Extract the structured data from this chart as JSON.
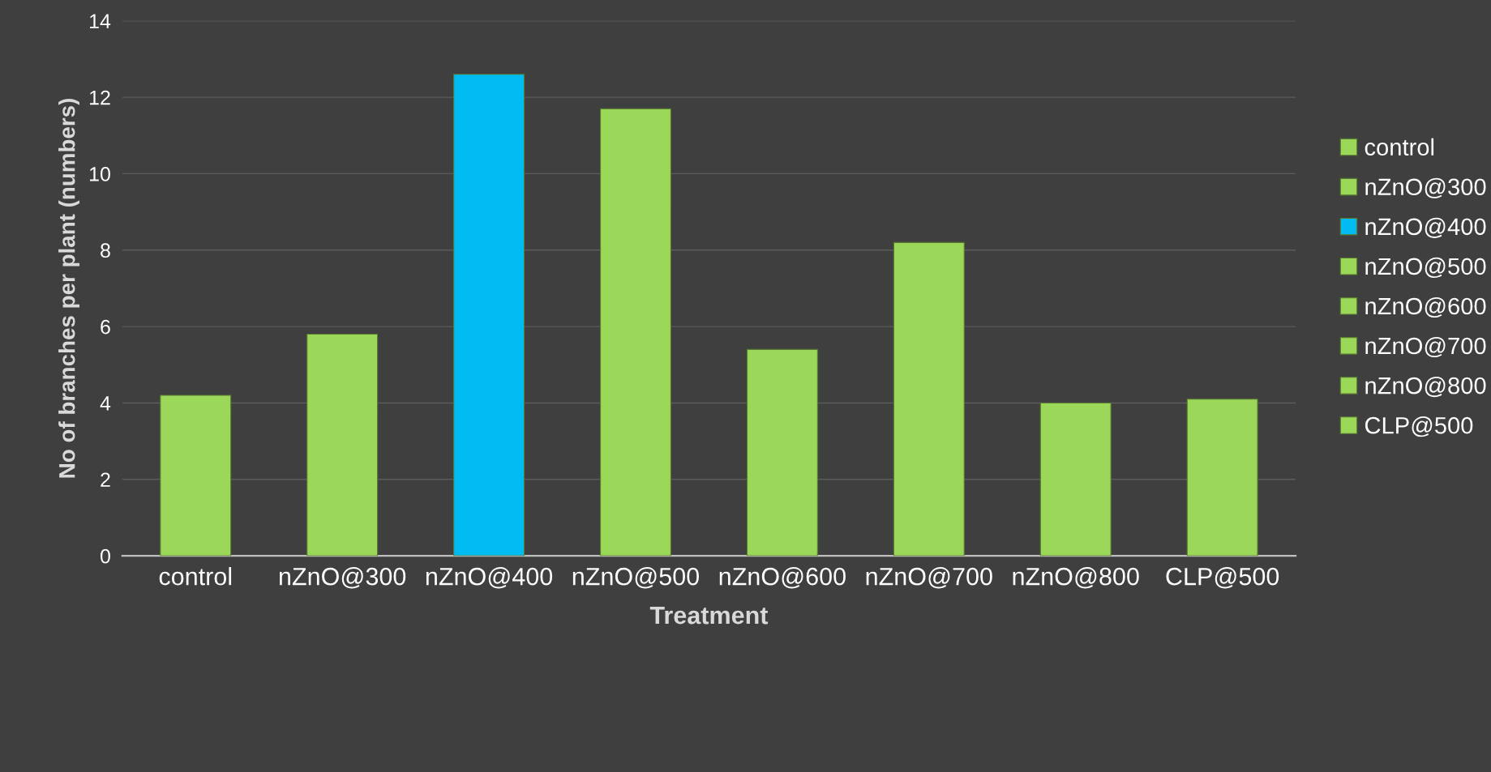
{
  "chart_data": {
    "type": "bar",
    "xlabel": "Treatment",
    "ylabel": "No of branches per plant (numbers)",
    "categories": [
      "control",
      "nZnO@300",
      "nZnO@400",
      "nZnO@500",
      "nZnO@600",
      "nZnO@700",
      "nZnO@800",
      "CLP@500"
    ],
    "stacked": true,
    "series": [
      {
        "name": "control",
        "color": "#9bd85a",
        "values": [
          4.2,
          null,
          null,
          null,
          null,
          null,
          null,
          null
        ]
      },
      {
        "name": "nZnO@300",
        "color": "#9bd85a",
        "values": [
          null,
          5.8,
          null,
          null,
          null,
          null,
          null,
          null
        ]
      },
      {
        "name": "nZnO@400",
        "color": "#00bcf2",
        "values": [
          null,
          null,
          12.6,
          null,
          null,
          null,
          null,
          null
        ]
      },
      {
        "name": "nZnO@500",
        "color": "#9bd85a",
        "values": [
          null,
          null,
          null,
          11.7,
          null,
          null,
          null,
          null
        ]
      },
      {
        "name": "nZnO@600",
        "color": "#9bd85a",
        "values": [
          null,
          null,
          null,
          null,
          5.4,
          null,
          null,
          null
        ]
      },
      {
        "name": "nZnO@700",
        "color": "#9bd85a",
        "values": [
          null,
          null,
          null,
          null,
          null,
          8.2,
          null,
          null
        ]
      },
      {
        "name": "nZnO@800",
        "color": "#9bd85a",
        "values": [
          null,
          null,
          null,
          null,
          null,
          null,
          4.0,
          null
        ]
      },
      {
        "name": "CLP@500",
        "color": "#9bd85a",
        "values": [
          null,
          null,
          null,
          null,
          null,
          null,
          null,
          4.1
        ]
      }
    ],
    "ylim": [
      0,
      14
    ],
    "yticks": [
      0,
      2,
      4,
      6,
      8,
      10,
      12,
      14
    ],
    "grid": "y",
    "legend": "right"
  }
}
